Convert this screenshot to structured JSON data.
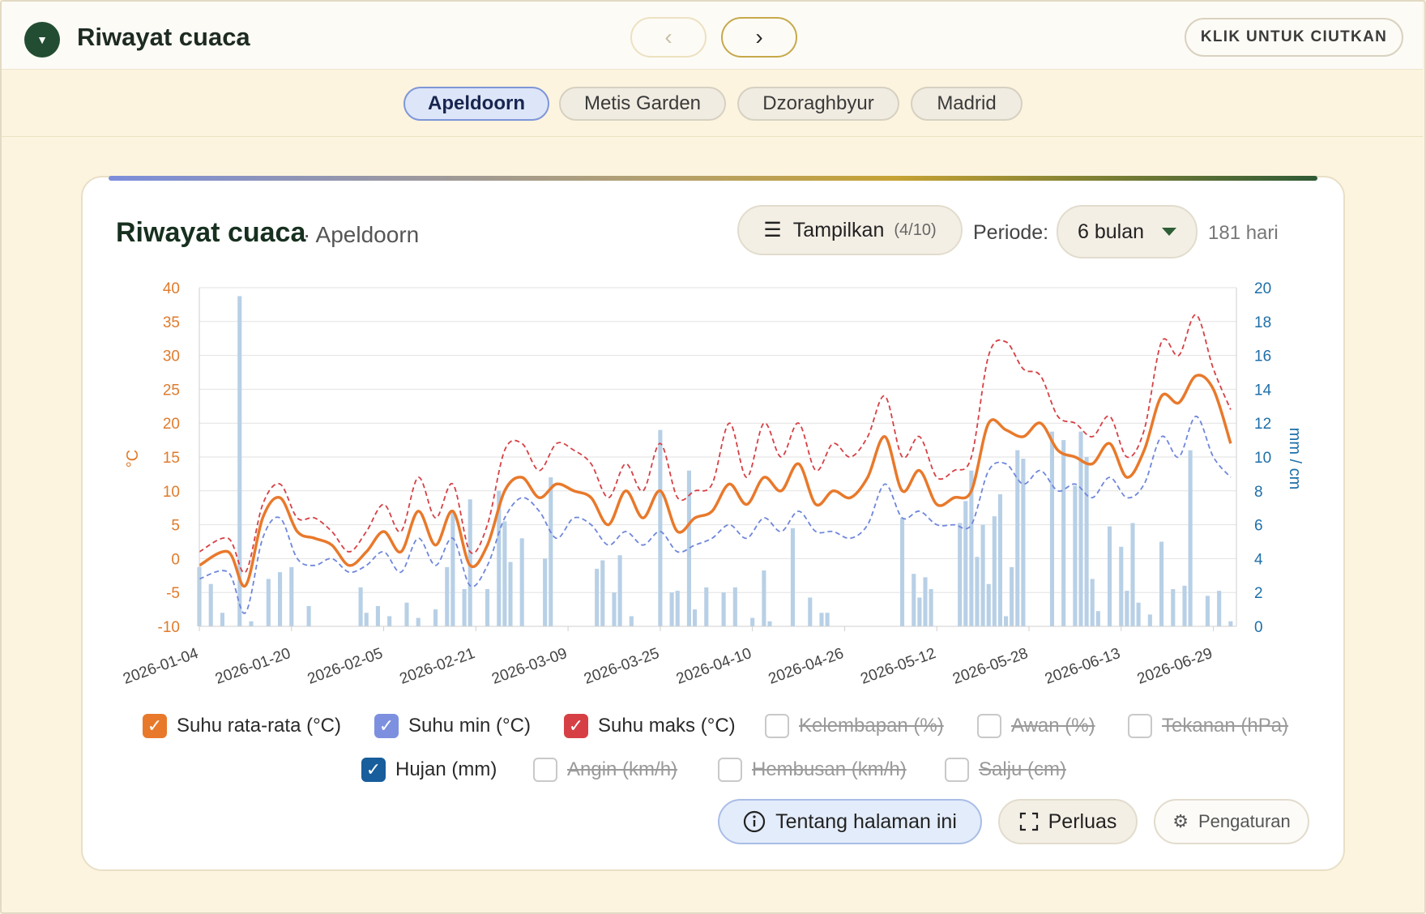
{
  "header": {
    "title": "Riwayat cuaca",
    "collapse_label": "KLIK UNTUK CIUTKAN",
    "toggle_icon": "triangle-down-icon",
    "prev_icon": "chevron-left-icon",
    "next_icon": "chevron-right-icon"
  },
  "tabs": [
    {
      "label": "Apeldoorn",
      "active": true
    },
    {
      "label": "Metis Garden",
      "active": false
    },
    {
      "label": "Dzoraghbyur",
      "active": false
    },
    {
      "label": "Madrid",
      "active": false
    }
  ],
  "card": {
    "title": "Riwayat cuaca",
    "subtitle": "· Apeldoorn",
    "show_label": "Tampilkan",
    "show_count": "(4/10)",
    "period_label": "Periode:",
    "period_value": "6 bulan",
    "days_label": "181 hari"
  },
  "legend": [
    {
      "label": "Suhu rata-rata (°C)",
      "checked": true,
      "color": "#e8792b"
    },
    {
      "label": "Suhu min (°C)",
      "checked": true,
      "color": "#7d90e0"
    },
    {
      "label": "Suhu maks (°C)",
      "checked": true,
      "color": "#d64045"
    },
    {
      "label": "Kelembapan (%)",
      "checked": false,
      "color": "#c9c9c9"
    },
    {
      "label": "Awan (%)",
      "checked": false,
      "color": "#c9c9c9"
    },
    {
      "label": "Tekanan (hPa)",
      "checked": false,
      "color": "#c9c9c9"
    },
    {
      "label": "Hujan (mm)",
      "checked": true,
      "color": "#185d9c"
    },
    {
      "label": "Angin (km/h)",
      "checked": false,
      "color": "#c9c9c9"
    },
    {
      "label": "Hembusan (km/h)",
      "checked": false,
      "color": "#c9c9c9"
    },
    {
      "label": "Salju (cm)",
      "checked": false,
      "color": "#c9c9c9"
    }
  ],
  "buttons": {
    "about": "Tentang halaman ini",
    "expand": "Perluas",
    "settings": "Pengaturan"
  },
  "chart_data": {
    "type": "line",
    "xlabel": "",
    "ylabel": "°C",
    "y2label": "mm / cm",
    "ylim": [
      -10,
      40
    ],
    "y2lim": [
      0,
      20
    ],
    "yticks": [
      -10,
      -5,
      0,
      5,
      10,
      15,
      20,
      25,
      30,
      35,
      40
    ],
    "y2ticks": [
      0,
      2,
      4,
      6,
      8,
      10,
      12,
      14,
      16,
      18,
      20
    ],
    "x_tick_labels": [
      "2026-01-04",
      "2026-01-20",
      "2026-02-05",
      "2026-02-21",
      "2026-03-09",
      "2026-03-25",
      "2026-04-10",
      "2026-04-26",
      "2026-05-12",
      "2026-05-28",
      "2026-06-13",
      "2026-06-29"
    ],
    "x_start": "2026-01-04",
    "x_end": "2026-07-03",
    "grid": true,
    "colors": {
      "avg": "#e8792b",
      "min": "#6f86dc",
      "max": "#d64045",
      "rain": "#b8d0e6",
      "axis_left": "#e07b2c",
      "axis_right": "#1e6fa8"
    },
    "series": [
      {
        "name": "Suhu rata-rata (°C)",
        "axis": "left",
        "x": [
          "2026-01-04",
          "2026-01-09",
          "2026-01-12",
          "2026-01-15",
          "2026-01-18",
          "2026-01-21",
          "2026-01-24",
          "2026-01-27",
          "2026-01-30",
          "2026-02-02",
          "2026-02-05",
          "2026-02-08",
          "2026-02-11",
          "2026-02-14",
          "2026-02-17",
          "2026-02-20",
          "2026-02-23",
          "2026-02-26",
          "2026-03-01",
          "2026-03-04",
          "2026-03-07",
          "2026-03-10",
          "2026-03-13",
          "2026-03-16",
          "2026-03-19",
          "2026-03-22",
          "2026-03-25",
          "2026-03-28",
          "2026-03-31",
          "2026-04-03",
          "2026-04-06",
          "2026-04-09",
          "2026-04-12",
          "2026-04-15",
          "2026-04-18",
          "2026-04-21",
          "2026-04-24",
          "2026-04-27",
          "2026-04-30",
          "2026-05-03",
          "2026-05-06",
          "2026-05-09",
          "2026-05-12",
          "2026-05-15",
          "2026-05-18",
          "2026-05-21",
          "2026-05-24",
          "2026-05-27",
          "2026-05-30",
          "2026-06-02",
          "2026-06-05",
          "2026-06-08",
          "2026-06-11",
          "2026-06-14",
          "2026-06-17",
          "2026-06-20",
          "2026-06-23",
          "2026-06-26",
          "2026-06-29",
          "2026-07-02"
        ],
        "values": [
          -1,
          1,
          -4,
          6,
          9,
          4,
          3,
          2,
          -1,
          1,
          4,
          1,
          7,
          2,
          7,
          -1,
          2,
          10,
          12,
          9,
          11,
          10,
          9,
          5,
          10,
          6,
          10,
          4,
          6,
          7,
          11,
          8,
          12,
          10,
          14,
          8,
          10,
          9,
          12,
          18,
          10,
          13,
          8,
          9,
          10,
          20,
          19,
          18,
          20,
          16,
          15,
          14,
          17,
          12,
          16,
          24,
          23,
          27,
          25,
          17
        ]
      },
      {
        "name": "Suhu min (°C)",
        "axis": "left",
        "x": [
          "2026-01-04",
          "2026-01-09",
          "2026-01-12",
          "2026-01-15",
          "2026-01-18",
          "2026-01-21",
          "2026-01-24",
          "2026-01-27",
          "2026-01-30",
          "2026-02-02",
          "2026-02-05",
          "2026-02-08",
          "2026-02-11",
          "2026-02-14",
          "2026-02-17",
          "2026-02-20",
          "2026-02-23",
          "2026-02-26",
          "2026-03-01",
          "2026-03-04",
          "2026-03-07",
          "2026-03-10",
          "2026-03-13",
          "2026-03-16",
          "2026-03-19",
          "2026-03-22",
          "2026-03-25",
          "2026-03-28",
          "2026-03-31",
          "2026-04-03",
          "2026-04-06",
          "2026-04-09",
          "2026-04-12",
          "2026-04-15",
          "2026-04-18",
          "2026-04-21",
          "2026-04-24",
          "2026-04-27",
          "2026-04-30",
          "2026-05-03",
          "2026-05-06",
          "2026-05-09",
          "2026-05-12",
          "2026-05-15",
          "2026-05-18",
          "2026-05-21",
          "2026-05-24",
          "2026-05-27",
          "2026-05-30",
          "2026-06-02",
          "2026-06-05",
          "2026-06-08",
          "2026-06-11",
          "2026-06-14",
          "2026-06-17",
          "2026-06-20",
          "2026-06-23",
          "2026-06-26",
          "2026-06-29",
          "2026-07-02"
        ],
        "values": [
          -3,
          -2,
          -8,
          3,
          6,
          0,
          -1,
          0,
          -2,
          -1,
          1,
          -2,
          3,
          -1,
          3,
          -4,
          -1,
          6,
          9,
          7,
          3,
          6,
          5,
          2,
          4,
          2,
          4,
          1,
          2,
          3,
          5,
          3,
          6,
          4,
          7,
          4,
          4,
          3,
          5,
          11,
          6,
          7,
          5,
          5,
          5,
          13,
          14,
          11,
          13,
          10,
          11,
          9,
          12,
          9,
          11,
          18,
          15,
          21,
          15,
          12
        ]
      },
      {
        "name": "Suhu maks (°C)",
        "axis": "left",
        "x": [
          "2026-01-04",
          "2026-01-09",
          "2026-01-12",
          "2026-01-15",
          "2026-01-18",
          "2026-01-21",
          "2026-01-24",
          "2026-01-27",
          "2026-01-30",
          "2026-02-02",
          "2026-02-05",
          "2026-02-08",
          "2026-02-11",
          "2026-02-14",
          "2026-02-17",
          "2026-02-20",
          "2026-02-23",
          "2026-02-26",
          "2026-03-01",
          "2026-03-04",
          "2026-03-07",
          "2026-03-10",
          "2026-03-13",
          "2026-03-16",
          "2026-03-19",
          "2026-03-22",
          "2026-03-25",
          "2026-03-28",
          "2026-03-31",
          "2026-04-03",
          "2026-04-06",
          "2026-04-09",
          "2026-04-12",
          "2026-04-15",
          "2026-04-18",
          "2026-04-21",
          "2026-04-24",
          "2026-04-27",
          "2026-04-30",
          "2026-05-03",
          "2026-05-06",
          "2026-05-09",
          "2026-05-12",
          "2026-05-15",
          "2026-05-18",
          "2026-05-21",
          "2026-05-24",
          "2026-05-27",
          "2026-05-30",
          "2026-06-02",
          "2026-06-05",
          "2026-06-08",
          "2026-06-11",
          "2026-06-14",
          "2026-06-17",
          "2026-06-20",
          "2026-06-23",
          "2026-06-26",
          "2026-06-29",
          "2026-07-02"
        ],
        "values": [
          1,
          3,
          -2,
          8,
          11,
          6,
          6,
          4,
          1,
          4,
          8,
          4,
          12,
          6,
          11,
          1,
          5,
          16,
          17,
          13,
          17,
          16,
          14,
          9,
          14,
          10,
          17,
          9,
          10,
          11,
          20,
          12,
          20,
          15,
          20,
          13,
          17,
          15,
          18,
          24,
          15,
          18,
          12,
          13,
          15,
          30,
          32,
          28,
          27,
          21,
          20,
          18,
          21,
          15,
          19,
          32,
          30,
          36,
          28,
          22
        ]
      },
      {
        "name": "Hujan (mm)",
        "axis": "right",
        "type": "bar",
        "x": [
          "2026-01-04",
          "2026-01-06",
          "2026-01-08",
          "2026-01-11",
          "2026-01-13",
          "2026-01-16",
          "2026-01-18",
          "2026-01-20",
          "2026-01-23",
          "2026-02-01",
          "2026-02-02",
          "2026-02-04",
          "2026-02-06",
          "2026-02-09",
          "2026-02-11",
          "2026-02-14",
          "2026-02-16",
          "2026-02-17",
          "2026-02-19",
          "2026-02-20",
          "2026-02-23",
          "2026-02-25",
          "2026-02-26",
          "2026-02-27",
          "2026-03-01",
          "2026-03-05",
          "2026-03-06",
          "2026-03-14",
          "2026-03-15",
          "2026-03-17",
          "2026-03-18",
          "2026-03-20",
          "2026-03-25",
          "2026-03-27",
          "2026-03-28",
          "2026-03-30",
          "2026-03-31",
          "2026-04-02",
          "2026-04-05",
          "2026-04-07",
          "2026-04-10",
          "2026-04-12",
          "2026-04-13",
          "2026-04-17",
          "2026-04-20",
          "2026-04-22",
          "2026-04-23",
          "2026-05-06",
          "2026-05-08",
          "2026-05-09",
          "2026-05-10",
          "2026-05-11",
          "2026-05-16",
          "2026-05-17",
          "2026-05-18",
          "2026-05-19",
          "2026-05-20",
          "2026-05-21",
          "2026-05-22",
          "2026-05-23",
          "2026-05-24",
          "2026-05-25",
          "2026-05-26",
          "2026-05-27",
          "2026-06-01",
          "2026-06-03",
          "2026-06-05",
          "2026-06-06",
          "2026-06-07",
          "2026-06-08",
          "2026-06-09",
          "2026-06-11",
          "2026-06-13",
          "2026-06-14",
          "2026-06-15",
          "2026-06-16",
          "2026-06-18",
          "2026-06-20",
          "2026-06-22",
          "2026-06-24",
          "2026-06-25",
          "2026-06-28",
          "2026-06-30",
          "2026-07-02"
        ],
        "values": [
          3.5,
          2.5,
          0.8,
          19.5,
          0.3,
          2.8,
          3.2,
          3.5,
          1.2,
          2.3,
          0.8,
          1.2,
          0.6,
          1.4,
          0.5,
          1.0,
          3.5,
          6.8,
          2.2,
          7.5,
          2.2,
          8.0,
          6.2,
          3.8,
          5.2,
          4.0,
          8.8,
          3.4,
          3.9,
          2.0,
          4.2,
          0.6,
          11.6,
          2.0,
          2.1,
          9.2,
          1.0,
          2.3,
          2.0,
          2.3,
          0.5,
          3.3,
          0.3,
          5.8,
          1.7,
          0.8,
          0.8,
          6.4,
          3.1,
          1.7,
          2.9,
          2.2,
          6.1,
          7.4,
          9.2,
          4.1,
          6.0,
          2.5,
          6.5,
          7.8,
          0.6,
          3.5,
          10.4,
          9.9,
          11.5,
          11.0,
          8.3,
          11.5,
          10.0,
          2.8,
          0.9,
          5.9,
          4.7,
          2.1,
          6.1,
          1.4,
          0.7,
          5.0,
          2.2,
          2.4,
          10.4,
          1.8,
          2.1,
          0.3
        ]
      }
    ]
  }
}
